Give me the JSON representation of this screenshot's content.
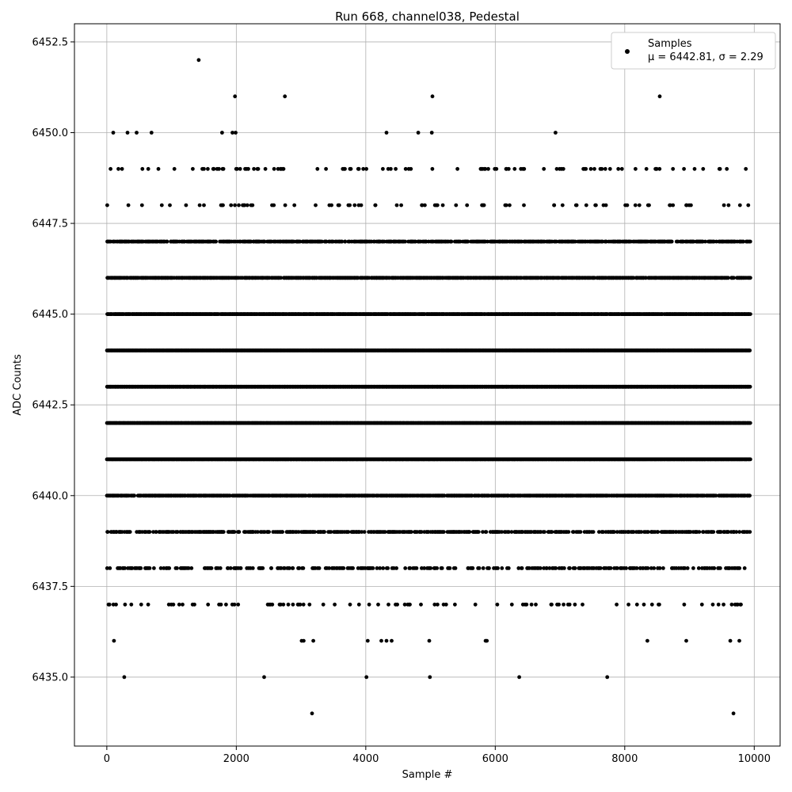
{
  "chart_data": {
    "type": "scatter",
    "title": "Run 668, channel038, Pedestal",
    "xlabel": "Sample #",
    "ylabel": "ADC Counts",
    "xlim": [
      -500,
      10400
    ],
    "ylim": [
      6433.1,
      6453.0
    ],
    "x_ticks": [
      0,
      2000,
      4000,
      6000,
      8000,
      10000
    ],
    "x_tick_labels": [
      "0",
      "2000",
      "4000",
      "6000",
      "8000",
      "10000"
    ],
    "y_ticks": [
      6435.0,
      6437.5,
      6440.0,
      6442.5,
      6445.0,
      6447.5,
      6450.0,
      6452.5
    ],
    "y_tick_labels": [
      "6435.0",
      "6437.5",
      "6440.0",
      "6442.5",
      "6445.0",
      "6447.5",
      "6450.0",
      "6452.5"
    ],
    "grid": true,
    "legend_position": "top-right",
    "marker_color": "#000000",
    "series": [
      {
        "name": "Samples",
        "stats_label": "μ = 6442.81, σ = 2.29",
        "sample_count": 10000,
        "x_range": [
          0,
          9930
        ],
        "level_density": [
          {
            "y": 6434,
            "density": 0
          },
          {
            "y": 6435,
            "density": 0
          },
          {
            "y": 6436,
            "density": 0
          },
          {
            "y": 6437,
            "density": 0.1
          },
          {
            "y": 6438,
            "density": 0.28
          },
          {
            "y": 6439,
            "density": 0.5
          },
          {
            "y": 6440,
            "density": 0.8
          },
          {
            "y": 6441,
            "density": 1.0
          },
          {
            "y": 6442,
            "density": 1.0
          },
          {
            "y": 6443,
            "density": 1.0
          },
          {
            "y": 6444,
            "density": 1.0
          },
          {
            "y": 6445,
            "density": 0.95
          },
          {
            "y": 6446,
            "density": 0.8
          },
          {
            "y": 6447,
            "density": 0.6
          },
          {
            "y": 6448,
            "density": 0.07
          },
          {
            "y": 6449,
            "density": 0.09
          },
          {
            "y": 6450,
            "density": 0
          },
          {
            "y": 6451,
            "density": 0
          },
          {
            "y": 6452,
            "density": 0
          }
        ],
        "outliers": [
          {
            "x": 1420,
            "y": 6452
          },
          {
            "x": 1980,
            "y": 6451
          },
          {
            "x": 2750,
            "y": 6451
          },
          {
            "x": 5030,
            "y": 6451
          },
          {
            "x": 8540,
            "y": 6451
          },
          {
            "x": 100,
            "y": 6450
          },
          {
            "x": 320,
            "y": 6450
          },
          {
            "x": 460,
            "y": 6450
          },
          {
            "x": 690,
            "y": 6450
          },
          {
            "x": 1780,
            "y": 6450
          },
          {
            "x": 1940,
            "y": 6450
          },
          {
            "x": 1990,
            "y": 6450
          },
          {
            "x": 4320,
            "y": 6450
          },
          {
            "x": 4810,
            "y": 6450
          },
          {
            "x": 5020,
            "y": 6450
          },
          {
            "x": 6930,
            "y": 6450
          },
          {
            "x": 110,
            "y": 6436
          },
          {
            "x": 3010,
            "y": 6436
          },
          {
            "x": 3040,
            "y": 6436
          },
          {
            "x": 3190,
            "y": 6436
          },
          {
            "x": 4030,
            "y": 6436
          },
          {
            "x": 4240,
            "y": 6436
          },
          {
            "x": 4320,
            "y": 6436
          },
          {
            "x": 4400,
            "y": 6436
          },
          {
            "x": 4980,
            "y": 6436
          },
          {
            "x": 5850,
            "y": 6436
          },
          {
            "x": 5870,
            "y": 6436
          },
          {
            "x": 8350,
            "y": 6436
          },
          {
            "x": 8950,
            "y": 6436
          },
          {
            "x": 9630,
            "y": 6436
          },
          {
            "x": 9770,
            "y": 6436
          },
          {
            "x": 270,
            "y": 6435
          },
          {
            "x": 2430,
            "y": 6435
          },
          {
            "x": 4010,
            "y": 6435
          },
          {
            "x": 4990,
            "y": 6435
          },
          {
            "x": 6370,
            "y": 6435
          },
          {
            "x": 7730,
            "y": 6435
          },
          {
            "x": 3170,
            "y": 6434
          },
          {
            "x": 9680,
            "y": 6434
          }
        ]
      }
    ]
  }
}
